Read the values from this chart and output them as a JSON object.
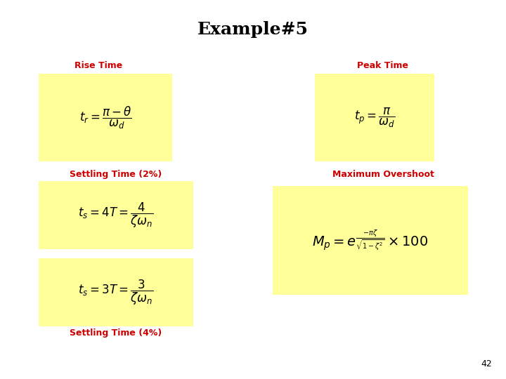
{
  "title": "Example#5",
  "title_fontsize": 18,
  "title_color": "#000000",
  "title_fontweight": "bold",
  "background_color": "#ffffff",
  "box_color": "#ffff99",
  "label_color": "#cc0000",
  "label_fontsize": 9,
  "label_fontweight": "bold",
  "formula_fontsize": 12,
  "page_number": "42",
  "labels": {
    "rise_time": "Rise Time",
    "peak_time": "Peak Time",
    "settling_2": "Settling Time (2%)",
    "settling_4": "Settling Time (4%)",
    "max_overshoot": "Maximum Overshoot"
  },
  "formulas": {
    "rise_time": "$t_r = \\dfrac{\\pi - \\theta}{\\omega_d}$",
    "peak_time": "$t_p = \\dfrac{\\pi}{\\omega_d}$",
    "settling_2": "$t_s = 4T = \\dfrac{4}{\\zeta\\omega_n}$",
    "settling_4": "$t_s = 3T = \\dfrac{3}{\\zeta\\omega_n}$",
    "max_overshoot": "$M_p = e^{\\frac{-\\pi\\zeta}{\\sqrt{1-\\zeta^2}}} \\times 100$"
  }
}
